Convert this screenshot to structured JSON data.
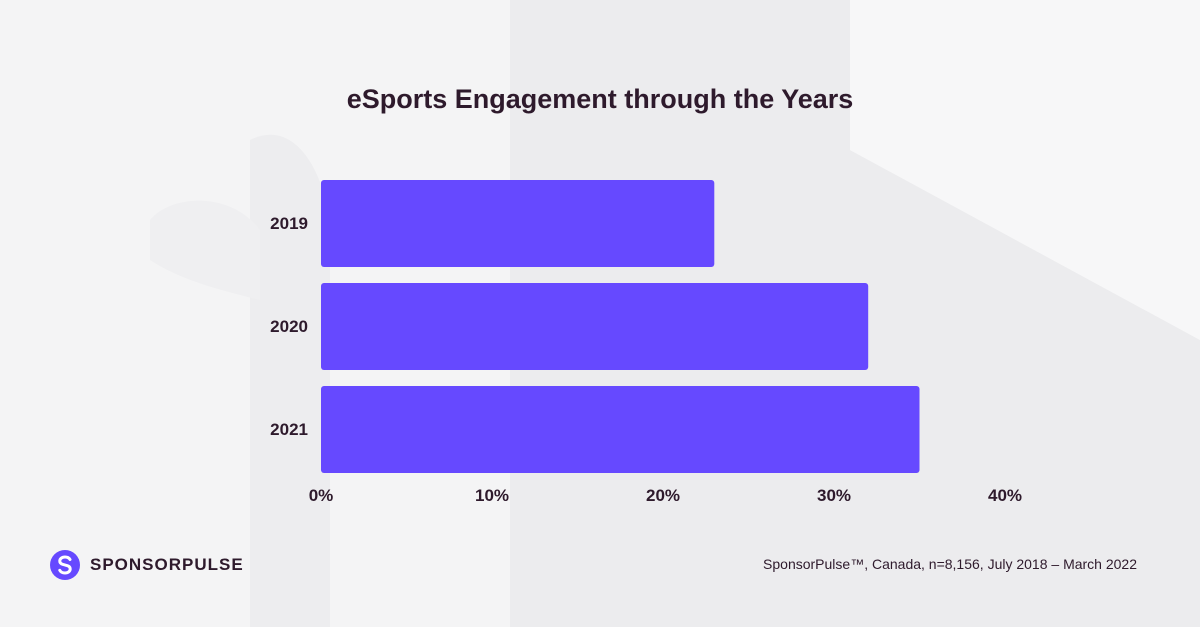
{
  "brand": {
    "logo_text": "SPONSORPULSE",
    "accent": "#6649ff",
    "text_color": "#2e1a2c"
  },
  "footer": {
    "source": "SponsorPulse™, Canada, n=8,156, July 2018 – March 2022"
  },
  "chart_data": {
    "type": "bar",
    "orientation": "horizontal",
    "title": "eSports Engagement through the Years",
    "categories": [
      "2019",
      "2020",
      "2021"
    ],
    "values": [
      23,
      32,
      35
    ],
    "unit": "%",
    "xlim": [
      0,
      40
    ],
    "xticks": [
      "0%",
      "10%",
      "20%",
      "30%",
      "40%"
    ],
    "xlabel": "",
    "ylabel": "",
    "grid": false,
    "legend": "none",
    "bar_color": "#6649ff"
  }
}
